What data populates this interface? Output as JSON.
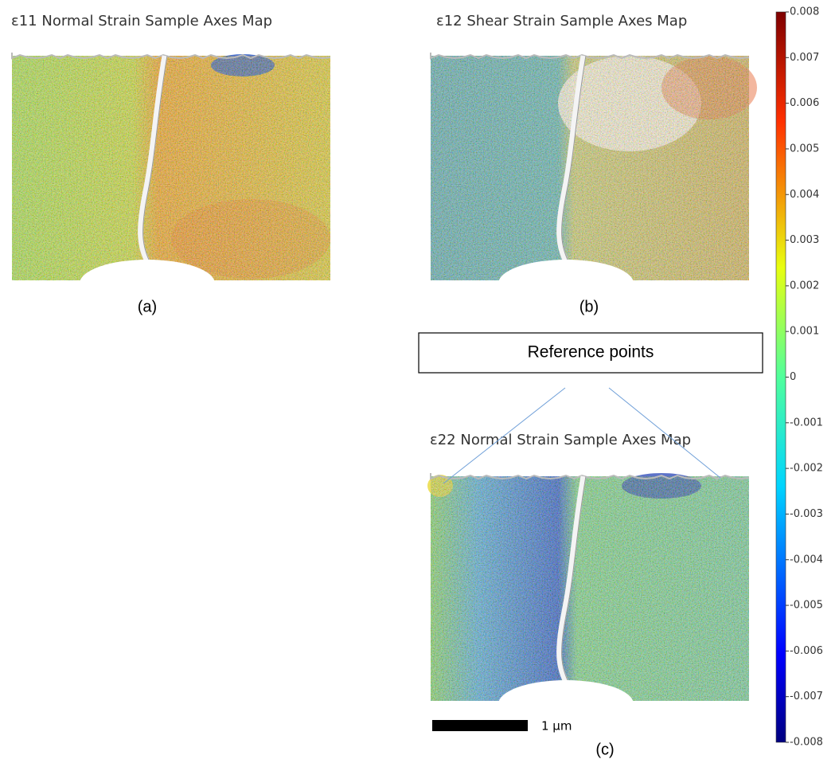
{
  "panels": [
    {
      "title": "ε11 Normal Strain Sample Axes Map",
      "label": "(a)"
    },
    {
      "title": "ε12 Shear Strain Sample Axes Map",
      "label": "(b)"
    },
    {
      "title": "ε22 Normal Strain Sample Axes Map",
      "label": "(c)"
    }
  ],
  "reference_box": {
    "label": "Reference points"
  },
  "scale_bar": {
    "label": "1 μm"
  },
  "colorbar": {
    "lim": [
      -0.008,
      0.008
    ],
    "ticks": [
      0.008,
      0.007,
      0.006,
      0.005,
      0.004,
      0.003,
      0.002,
      0.001,
      0,
      -0.001,
      -0.002,
      -0.003,
      -0.004,
      -0.005,
      -0.006,
      -0.007,
      -0.008
    ]
  }
}
